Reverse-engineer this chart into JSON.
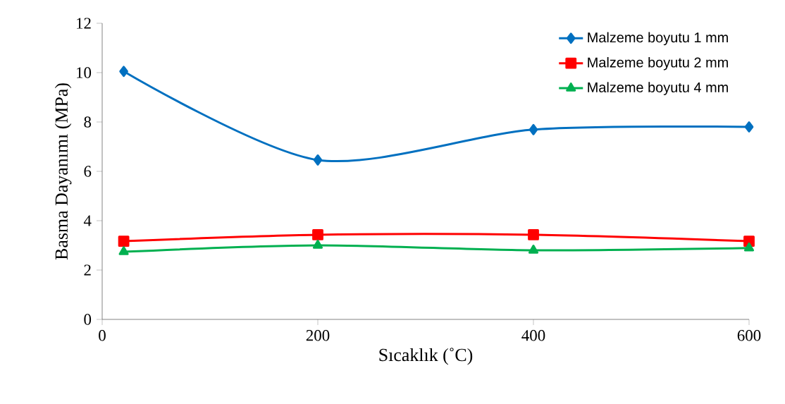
{
  "chart_data": {
    "type": "line",
    "xlabel": "Sıcaklık (˚C)",
    "ylabel": "Basma Dayanımı (MPa)",
    "x": [
      20,
      200,
      400,
      600
    ],
    "series": [
      {
        "name": "Malzeme boyutu 1 mm",
        "color": "#0070c0",
        "marker": "diamond",
        "values": [
          10.05,
          6.46,
          7.69,
          7.8
        ]
      },
      {
        "name": "Malzeme boyutu 2 mm",
        "color": "#ff0000",
        "marker": "square",
        "values": [
          3.17,
          3.43,
          3.43,
          3.17
        ]
      },
      {
        "name": "Malzeme boyutu 4 mm",
        "color": "#00b050",
        "marker": "triangle",
        "values": [
          2.74,
          3.0,
          2.8,
          2.89
        ]
      }
    ],
    "xlim": [
      0,
      600
    ],
    "xticks": [
      0,
      200,
      400,
      600
    ],
    "ylim": [
      0,
      12
    ],
    "yticks": [
      0,
      2,
      4,
      6,
      8,
      10,
      12
    ],
    "grid": false,
    "legend": "top right",
    "line_style": "solid"
  }
}
